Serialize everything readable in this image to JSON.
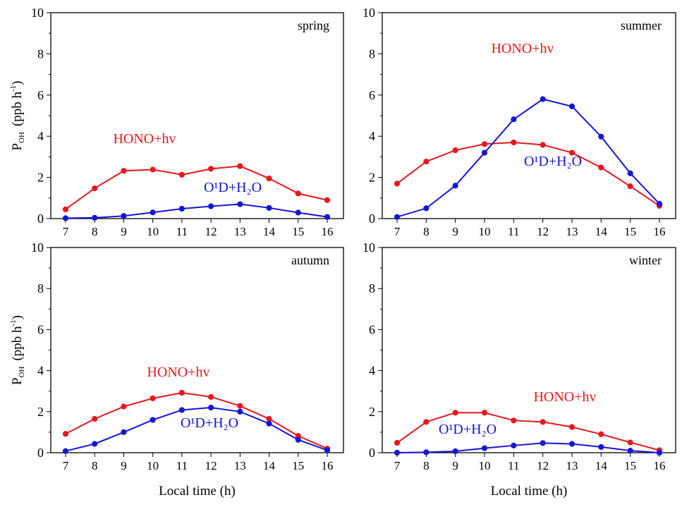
{
  "chart_data": [
    {
      "type": "line",
      "title": "spring",
      "x": [
        7,
        8,
        9,
        10,
        11,
        12,
        13,
        14,
        15,
        16
      ],
      "xlabel": "",
      "ylabel": "P_OH (ppb h-1)",
      "ylim": [
        0,
        10
      ],
      "series": [
        {
          "name": "HONO+hv",
          "color": "#e8171d",
          "values": [
            0.45,
            1.47,
            2.32,
            2.38,
            2.13,
            2.42,
            2.55,
            1.95,
            1.22,
            0.9
          ]
        },
        {
          "name": "O¹D+H₂O",
          "color": "#1515d8",
          "values": [
            0.02,
            0.04,
            0.13,
            0.3,
            0.48,
            0.6,
            0.7,
            0.52,
            0.29,
            0.08
          ]
        }
      ]
    },
    {
      "type": "line",
      "title": "summer",
      "x": [
        7,
        8,
        9,
        10,
        11,
        12,
        13,
        14,
        15,
        16
      ],
      "xlabel": "",
      "ylabel": "",
      "ylim": [
        0,
        10
      ],
      "series": [
        {
          "name": "HONO+hv",
          "color": "#e8171d",
          "values": [
            1.7,
            2.77,
            3.32,
            3.62,
            3.7,
            3.58,
            3.2,
            2.48,
            1.57,
            0.62
          ]
        },
        {
          "name": "O¹D+H₂O",
          "color": "#1515d8",
          "values": [
            0.08,
            0.5,
            1.6,
            3.2,
            4.82,
            5.8,
            5.45,
            3.98,
            2.2,
            0.72
          ]
        }
      ]
    },
    {
      "type": "line",
      "title": "autumn",
      "x": [
        7,
        8,
        9,
        10,
        11,
        12,
        13,
        14,
        15,
        16
      ],
      "xlabel": "Local time (h)",
      "ylabel": "P_OH (ppb h-1)",
      "ylim": [
        0,
        10
      ],
      "series": [
        {
          "name": "HONO+hv",
          "color": "#e8171d",
          "values": [
            0.92,
            1.65,
            2.25,
            2.65,
            2.92,
            2.72,
            2.28,
            1.65,
            0.82,
            0.2
          ]
        },
        {
          "name": "O¹D+H₂O",
          "color": "#1515d8",
          "values": [
            0.08,
            0.43,
            1.0,
            1.6,
            2.08,
            2.2,
            2.0,
            1.42,
            0.63,
            0.12
          ]
        }
      ]
    },
    {
      "type": "line",
      "title": "winter",
      "x": [
        7,
        8,
        9,
        10,
        11,
        12,
        13,
        14,
        15,
        16
      ],
      "xlabel": "Local time (h)",
      "ylabel": "",
      "ylim": [
        0,
        10
      ],
      "series": [
        {
          "name": "HONO+hv",
          "color": "#e8171d",
          "values": [
            0.48,
            1.5,
            1.95,
            1.95,
            1.57,
            1.5,
            1.25,
            0.9,
            0.5,
            0.12
          ]
        },
        {
          "name": "O¹D+H₂O",
          "color": "#1515d8",
          "values": [
            0.0,
            0.02,
            0.07,
            0.22,
            0.35,
            0.47,
            0.43,
            0.28,
            0.1,
            0.0
          ]
        }
      ]
    }
  ],
  "yticks": [
    0,
    2,
    4,
    6,
    8,
    10
  ],
  "ylabel_parts": {
    "main": "P",
    "sub": "OH",
    "unit": "(ppb h",
    "sup": "-1",
    "close": ")"
  }
}
